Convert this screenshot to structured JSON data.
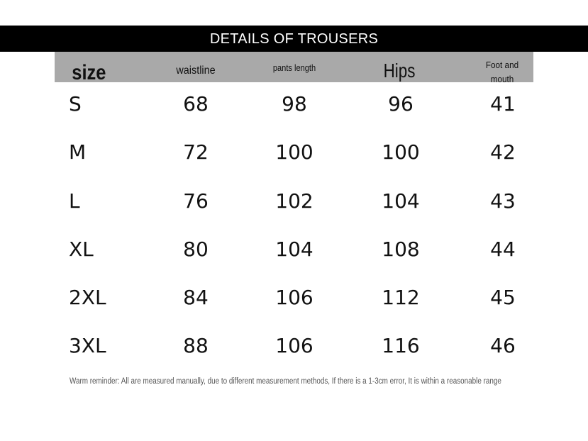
{
  "title": "DETAILS OF TROUSERS",
  "headers": {
    "size": "size",
    "waistline": "waistline",
    "pants_length": "pants length",
    "hips": "Hips",
    "foot_and_mouth": "Foot and mouth"
  },
  "rows": [
    {
      "size": "S",
      "waistline": "68",
      "pants_length": "98",
      "hips": "96",
      "foot_and_mouth": "41"
    },
    {
      "size": "M",
      "waistline": "72",
      "pants_length": "100",
      "hips": "100",
      "foot_and_mouth": "42"
    },
    {
      "size": "L",
      "waistline": "76",
      "pants_length": "102",
      "hips": "104",
      "foot_and_mouth": "43"
    },
    {
      "size": "XL",
      "waistline": "80",
      "pants_length": "104",
      "hips": "108",
      "foot_and_mouth": "44"
    },
    {
      "size": "2XL",
      "waistline": "84",
      "pants_length": "106",
      "hips": "112",
      "foot_and_mouth": "45"
    },
    {
      "size": "3XL",
      "waistline": "88",
      "pants_length": "106",
      "hips": "116",
      "foot_and_mouth": "46"
    }
  ],
  "note": "Warm reminder: All are measured manually, due to different measurement methods, If there is a 1-3cm error, It is within a reasonable range"
}
